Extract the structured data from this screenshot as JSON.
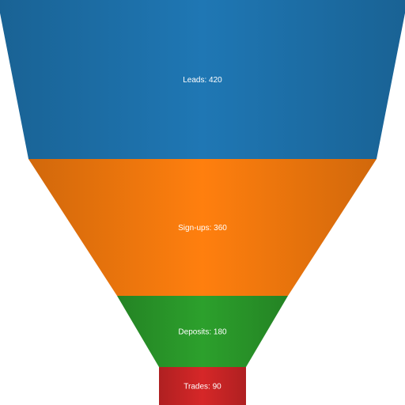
{
  "chart_data": {
    "type": "funnel",
    "title": "",
    "stages": [
      {
        "label": "Leads: 420",
        "name": "Leads",
        "value": 420,
        "color": "#1f77b4"
      },
      {
        "label": "Sign-ups: 360",
        "name": "Sign-ups",
        "value": 360,
        "color": "#ff7f0e"
      },
      {
        "label": "Deposits: 180",
        "name": "Deposits",
        "value": 180,
        "color": "#2ca02c"
      },
      {
        "label": "Trades: 90",
        "name": "Trades",
        "value": 90,
        "color": "#d62728"
      }
    ]
  }
}
